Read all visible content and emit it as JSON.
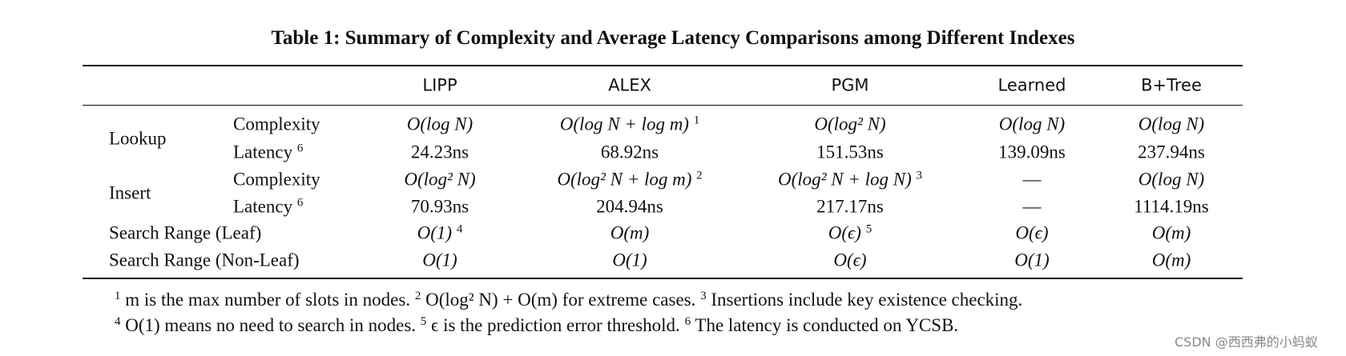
{
  "title": "Table 1: Summary of Complexity and Average Latency Comparisons among Different Indexes",
  "table": {
    "columns": [
      "LIPP",
      "ALEX",
      "PGM",
      "Learned",
      "B+Tree"
    ],
    "rows": [
      {
        "group": "Lookup",
        "label": "Complexity",
        "cells": [
          "O(log N)",
          {
            "text": "O(log N + log m)",
            "note": "1"
          },
          "O(log² N)",
          "O(log N)",
          "O(log N)"
        ]
      },
      {
        "label": "Latency",
        "note": "6",
        "cells": [
          "24.23ns",
          "68.92ns",
          "151.53ns",
          "139.09ns",
          "237.94ns"
        ]
      },
      {
        "group": "Insert",
        "label": "Complexity",
        "cells": [
          "O(log² N)",
          {
            "text": "O(log² N + log m)",
            "note": "2"
          },
          {
            "text": "O(log² N + log N)",
            "note": "3"
          },
          "—",
          "O(log N)"
        ]
      },
      {
        "label": "Latency",
        "note": "6",
        "cells": [
          "70.93ns",
          "204.94ns",
          "217.17ns",
          "—",
          "1114.19ns"
        ]
      },
      {
        "label": "Search Range (Leaf)",
        "cells": [
          {
            "text": "O(1)",
            "note": "4"
          },
          "O(m)",
          {
            "text": "O(ϵ)",
            "note": "5"
          },
          "O(ϵ)",
          "O(m)"
        ]
      },
      {
        "label": "Search Range (Non-Leaf)",
        "cells": [
          "O(1)",
          "O(1)",
          "O(ϵ)",
          "O(1)",
          "O(m)"
        ]
      }
    ]
  },
  "footnotes": [
    [
      {
        "mark": "1",
        "text": "m is the max number of slots in nodes."
      },
      {
        "mark": "2",
        "text": "O(log² N) + O(m) for extreme cases."
      },
      {
        "mark": "3",
        "text": "Insertions include key existence checking."
      }
    ],
    [
      {
        "mark": "4",
        "text": "O(1) means no need to search in nodes."
      },
      {
        "mark": "5",
        "text": "ϵ is the prediction error threshold."
      },
      {
        "mark": "6",
        "text": "The latency is conducted on YCSB."
      }
    ]
  ],
  "watermark": "CSDN @西西弗的小蚂蚁"
}
